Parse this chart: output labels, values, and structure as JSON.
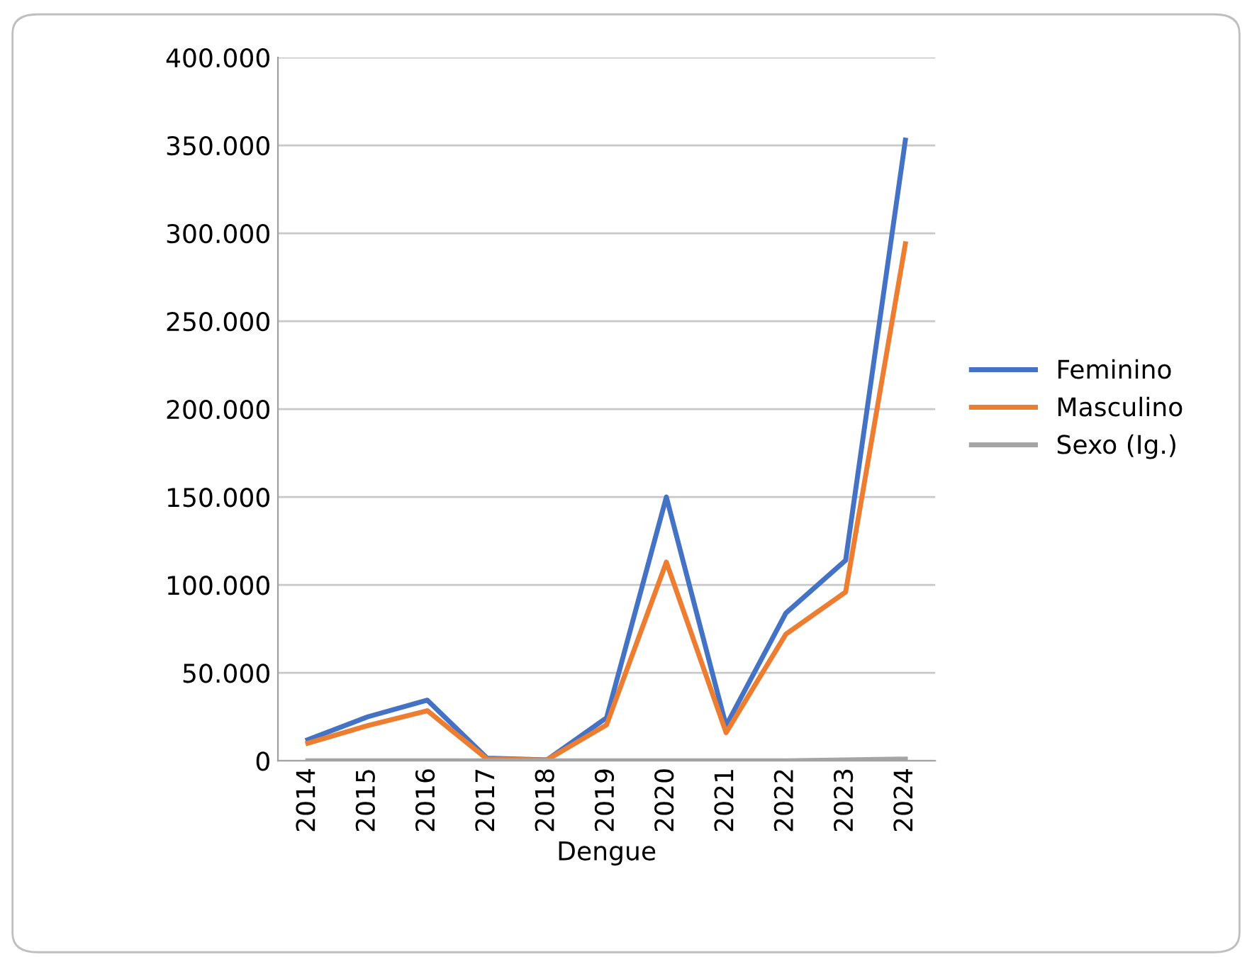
{
  "chart_data": {
    "type": "line",
    "xlabel": "Dengue",
    "categories": [
      "2014",
      "2015",
      "2016",
      "2017",
      "2018",
      "2019",
      "2020",
      "2021",
      "2022",
      "2023",
      "2024"
    ],
    "series": [
      {
        "name": "Feminino",
        "color": "#4472c4",
        "values": [
          12000,
          25000,
          34500,
          1500,
          500,
          24500,
          150000,
          20000,
          84000,
          114000,
          353000
        ]
      },
      {
        "name": "Masculino",
        "color": "#ed7d31",
        "values": [
          10000,
          20000,
          28500,
          1000,
          500,
          20500,
          113000,
          16000,
          72000,
          96000,
          294000
        ]
      },
      {
        "name": "Sexo (Ig.)",
        "color": "#a5a5a5",
        "values": [
          0,
          0,
          0,
          0,
          0,
          0,
          0,
          0,
          0,
          500,
          1000
        ]
      }
    ],
    "ylim": [
      0,
      400000
    ],
    "yticks": [
      0,
      {
        "value": 50000,
        "label": "50.000"
      },
      {
        "value": 100000,
        "label": "100.000"
      },
      {
        "value": 150000,
        "label": "150.000"
      },
      {
        "value": 200000,
        "label": "200.000"
      },
      {
        "value": 250000,
        "label": "250.000"
      },
      {
        "value": 300000,
        "label": "300.000"
      },
      {
        "value": 350000,
        "label": "350.000"
      },
      {
        "value": 400000,
        "label": "400.000"
      }
    ],
    "grid": "y",
    "legend": "right",
    "marker": "none",
    "line_style": "solid"
  }
}
